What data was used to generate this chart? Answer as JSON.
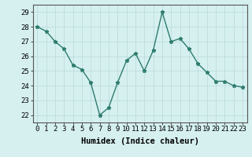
{
  "x": [
    0,
    1,
    2,
    3,
    4,
    5,
    6,
    7,
    8,
    9,
    10,
    11,
    12,
    13,
    14,
    15,
    16,
    17,
    18,
    19,
    20,
    21,
    22,
    23
  ],
  "y": [
    28.0,
    27.7,
    27.0,
    26.5,
    25.4,
    25.1,
    24.2,
    22.0,
    22.5,
    24.2,
    25.7,
    26.2,
    25.0,
    26.4,
    29.0,
    27.0,
    27.2,
    26.5,
    25.5,
    24.9,
    24.3,
    24.3,
    24.0,
    23.9
  ],
  "line_color": "#2e7d6e",
  "marker": "*",
  "marker_size": 3.5,
  "bg_color": "#d6f0f0",
  "grid_color": "#b8d8d8",
  "xlabel": "Humidex (Indice chaleur)",
  "ylim": [
    21.5,
    29.5
  ],
  "xlim": [
    -0.5,
    23.5
  ],
  "yticks": [
    22,
    23,
    24,
    25,
    26,
    27,
    28,
    29
  ],
  "xticks": [
    0,
    1,
    2,
    3,
    4,
    5,
    6,
    7,
    8,
    9,
    10,
    11,
    12,
    13,
    14,
    15,
    16,
    17,
    18,
    19,
    20,
    21,
    22,
    23
  ],
  "tick_label_fontsize": 6.5,
  "xlabel_fontsize": 7.5,
  "line_width": 1.0
}
